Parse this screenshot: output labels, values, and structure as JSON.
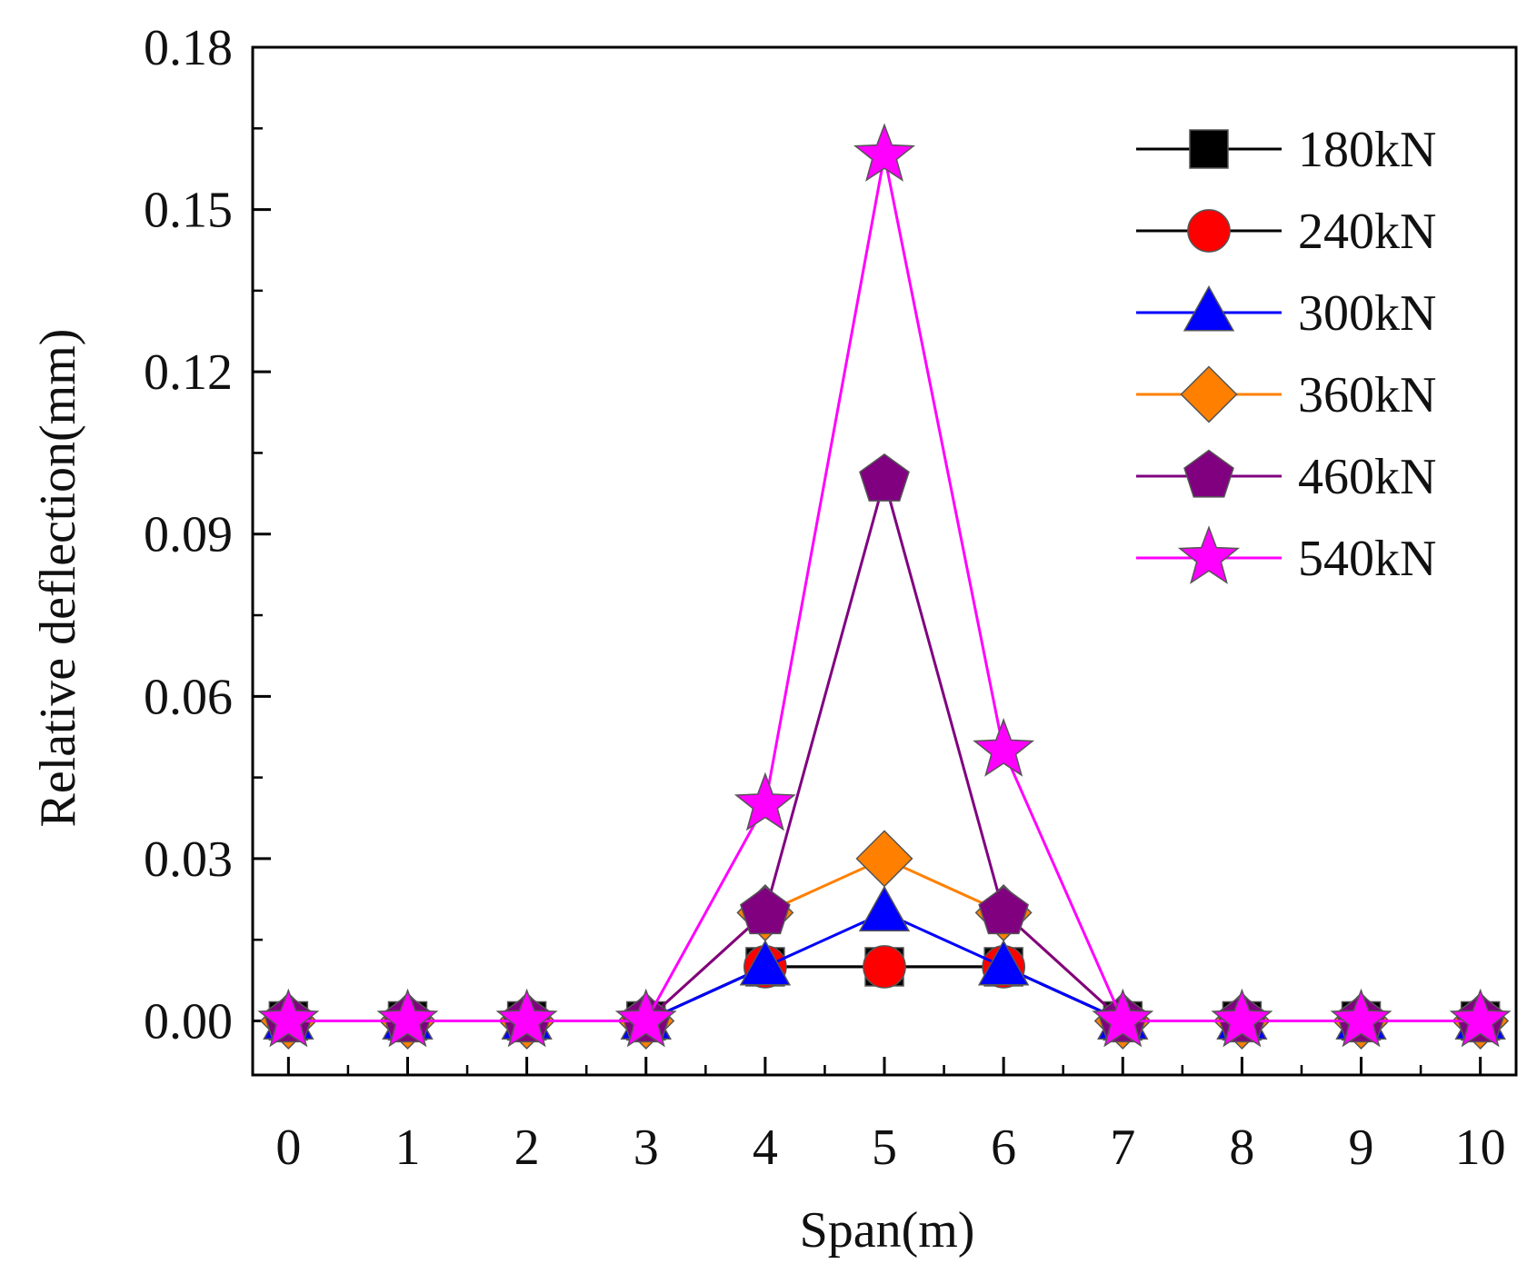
{
  "chart_data": {
    "type": "line",
    "title": "",
    "xlabel": "Span(m)",
    "ylabel": "Relative deflection(mm)",
    "xlim": [
      -0.3,
      10.3
    ],
    "ylim": [
      -0.01,
      0.18
    ],
    "x": [
      0,
      1,
      2,
      3,
      4,
      5,
      6,
      7,
      8,
      9,
      10
    ],
    "x_ticks": [
      "0",
      "1",
      "2",
      "3",
      "4",
      "5",
      "6",
      "7",
      "8",
      "9",
      "10"
    ],
    "y_ticks": [
      "0.00",
      "0.03",
      "0.06",
      "0.09",
      "0.12",
      "0.15",
      "0.18"
    ],
    "grid": false,
    "legend_position": "top-right",
    "series": [
      {
        "name": "180kN",
        "color": "#000000",
        "marker": "square",
        "values": [
          0,
          0,
          0,
          0,
          0.01,
          0.01,
          0.01,
          0,
          0,
          0,
          0
        ]
      },
      {
        "name": "240kN",
        "color": "#ff0000",
        "line_color": "#000000",
        "marker": "circle",
        "values": [
          0,
          0,
          0,
          0,
          0.01,
          0.01,
          0.01,
          0,
          0,
          0,
          0
        ]
      },
      {
        "name": "300kN",
        "color": "#0000ff",
        "marker": "triangle",
        "values": [
          0,
          0,
          0,
          0,
          0.01,
          0.02,
          0.01,
          0,
          0,
          0,
          0
        ]
      },
      {
        "name": "360kN",
        "color": "#ff8000",
        "marker": "diamond",
        "values": [
          0,
          0,
          0,
          0,
          0.02,
          0.03,
          0.02,
          0,
          0,
          0,
          0
        ]
      },
      {
        "name": "460kN",
        "color": "#800080",
        "marker": "pentagon",
        "values": [
          0,
          0,
          0,
          0,
          0.02,
          0.1,
          0.02,
          0,
          0,
          0,
          0
        ]
      },
      {
        "name": "540kN",
        "color": "#ff00ff",
        "marker": "star",
        "values": [
          0,
          0,
          0,
          0,
          0.04,
          0.16,
          0.05,
          0,
          0,
          0,
          0
        ]
      }
    ]
  }
}
